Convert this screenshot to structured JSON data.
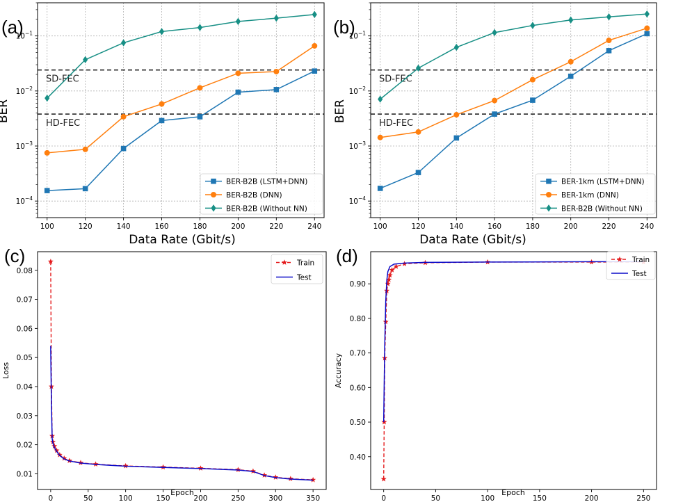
{
  "colors": {
    "lstm": "#1f77b4",
    "dnn": "#ff7f0e",
    "nonn": "#178f85",
    "train": "#e41a1c",
    "test": "#0a0ac8",
    "grid": "#b0b0b0"
  },
  "chart_data": [
    {
      "type": "line",
      "panel_label": "(a)",
      "xlabel": "Data Rate (Gbit/s)",
      "ylabel": "BER",
      "yscale": "log",
      "xlim": [
        95,
        245
      ],
      "ylim": [
        5e-05,
        0.4
      ],
      "xticks": [
        "100",
        "120",
        "140",
        "160",
        "180",
        "200",
        "220",
        "240"
      ],
      "yticks": [
        {
          "v": 0.0001,
          "b": "10",
          "e": "−4"
        },
        {
          "v": 0.001,
          "b": "10",
          "e": "−3"
        },
        {
          "v": 0.01,
          "b": "10",
          "e": "−2"
        },
        {
          "v": 0.1,
          "b": "10",
          "e": "−1"
        }
      ],
      "grid": true,
      "legend": "lower-right",
      "thresholds": [
        {
          "label": "SD-FEC",
          "value": 0.024
        },
        {
          "label": "HD-FEC",
          "value": 0.0038
        }
      ],
      "x": [
        100,
        120,
        140,
        160,
        180,
        200,
        220,
        240
      ],
      "series": [
        {
          "name": "BER-B2B (LSTM+DNN)",
          "color_key": "lstm",
          "marker": "square",
          "values": [
            0.000155,
            0.000168,
            0.0009,
            0.0029,
            0.0034,
            0.0095,
            0.0106,
            0.023
          ]
        },
        {
          "name": "BER-B2B (DNN)",
          "color_key": "dnn",
          "marker": "circle",
          "values": [
            0.00075,
            0.00087,
            0.0034,
            0.0058,
            0.0114,
            0.021,
            0.0225,
            0.066
          ]
        },
        {
          "name": "BER-B2B (Without NN)",
          "color_key": "nonn",
          "marker": "diamond",
          "values": [
            0.0074,
            0.037,
            0.075,
            0.12,
            0.142,
            0.183,
            0.21,
            0.245
          ]
        }
      ]
    },
    {
      "type": "line",
      "panel_label": "(b)",
      "xlabel": "Data Rate (Gbit/s)",
      "ylabel": "BER",
      "yscale": "log",
      "xlim": [
        95,
        245
      ],
      "ylim": [
        5e-05,
        0.4
      ],
      "xticks": [
        "100",
        "120",
        "140",
        "160",
        "180",
        "200",
        "220",
        "240"
      ],
      "yticks": [
        {
          "v": 0.0001,
          "b": "10",
          "e": "−4"
        },
        {
          "v": 0.001,
          "b": "10",
          "e": "−3"
        },
        {
          "v": 0.01,
          "b": "10",
          "e": "−2"
        },
        {
          "v": 0.1,
          "b": "10",
          "e": "−1"
        }
      ],
      "grid": true,
      "legend": "lower-right",
      "thresholds": [
        {
          "label": "SD-FEC",
          "value": 0.024
        },
        {
          "label": "HD-FEC",
          "value": 0.0038
        }
      ],
      "x": [
        100,
        120,
        140,
        160,
        180,
        200,
        220,
        240
      ],
      "series": [
        {
          "name": "BER-1km (LSTM+DNN)",
          "color_key": "lstm",
          "marker": "square",
          "values": [
            0.00017,
            0.00033,
            0.0014,
            0.0038,
            0.0068,
            0.0185,
            0.054,
            0.11
          ]
        },
        {
          "name": "BER-1km (DNN)",
          "color_key": "dnn",
          "marker": "circle",
          "values": [
            0.00143,
            0.0018,
            0.0037,
            0.0067,
            0.016,
            0.034,
            0.083,
            0.138
          ]
        },
        {
          "name": "BER-B2B (Without NN)",
          "color_key": "nonn",
          "marker": "diamond",
          "values": [
            0.0071,
            0.026,
            0.062,
            0.115,
            0.155,
            0.195,
            0.222,
            0.25
          ]
        }
      ]
    },
    {
      "type": "line",
      "panel_label": "(c)",
      "xlabel": "Epoch",
      "ylabel": "Loss",
      "xlim": [
        -17.5,
        367.5
      ],
      "ylim": [
        0.0046,
        0.0864
      ],
      "xticks": [
        0,
        50,
        100,
        150,
        200,
        250,
        300,
        350
      ],
      "yticks": [
        0.01,
        0.02,
        0.03,
        0.04,
        0.05,
        0.06,
        0.07,
        0.08
      ],
      "grid": false,
      "legend": "upper-right",
      "series": [
        {
          "name": "Train",
          "color_key": "train",
          "style": "dashed",
          "marker": "star",
          "points": [
            [
              0,
              0.083
            ],
            [
              1,
              0.04
            ],
            [
              2,
              0.023
            ],
            [
              3,
              0.021
            ],
            [
              5,
              0.0195
            ],
            [
              8,
              0.018
            ],
            [
              12,
              0.0165
            ],
            [
              18,
              0.0153
            ],
            [
              25,
              0.0145
            ],
            [
              40,
              0.0138
            ],
            [
              60,
              0.0133
            ],
            [
              100,
              0.0127
            ],
            [
              150,
              0.0123
            ],
            [
              200,
              0.0119
            ],
            [
              250,
              0.0114
            ],
            [
              270,
              0.0109
            ],
            [
              285,
              0.0095
            ],
            [
              300,
              0.0088
            ],
            [
              320,
              0.0083
            ],
            [
              350,
              0.0079
            ]
          ]
        },
        {
          "name": "Test",
          "color_key": "test",
          "style": "solid",
          "points": [
            [
              0,
              0.054
            ],
            [
              1,
              0.034
            ],
            [
              2,
              0.022
            ],
            [
              3,
              0.0205
            ],
            [
              5,
              0.019
            ],
            [
              8,
              0.0177
            ],
            [
              12,
              0.0163
            ],
            [
              18,
              0.0151
            ],
            [
              25,
              0.0144
            ],
            [
              40,
              0.0137
            ],
            [
              60,
              0.0132
            ],
            [
              100,
              0.0126
            ],
            [
              150,
              0.0122
            ],
            [
              200,
              0.0118
            ],
            [
              250,
              0.0113
            ],
            [
              270,
              0.0108
            ],
            [
              285,
              0.0094
            ],
            [
              300,
              0.0087
            ],
            [
              320,
              0.0082
            ],
            [
              350,
              0.0078
            ]
          ]
        }
      ]
    },
    {
      "type": "line",
      "panel_label": "(d)",
      "xlabel": "Epoch",
      "ylabel": "Accuracy",
      "xlim": [
        -12.5,
        262.5
      ],
      "ylim": [
        0.305,
        0.993
      ],
      "xticks": [
        0,
        50,
        100,
        150,
        200,
        250
      ],
      "yticks": [
        0.4,
        0.5,
        0.6,
        0.7,
        0.8,
        0.9
      ],
      "grid": false,
      "legend": "upper-right",
      "series": [
        {
          "name": "Train",
          "color_key": "train",
          "style": "dashed",
          "marker": "star",
          "points": [
            [
              0,
              0.335
            ],
            [
              0.5,
              0.5
            ],
            [
              1,
              0.685
            ],
            [
              2,
              0.79
            ],
            [
              3,
              0.88
            ],
            [
              4,
              0.9
            ],
            [
              5,
              0.912
            ],
            [
              6,
              0.925
            ],
            [
              8,
              0.94
            ],
            [
              12,
              0.95
            ],
            [
              20,
              0.958
            ],
            [
              40,
              0.961
            ],
            [
              100,
              0.963
            ],
            [
              200,
              0.963
            ],
            [
              250,
              0.963
            ]
          ]
        },
        {
          "name": "Test",
          "color_key": "test",
          "style": "solid",
          "points": [
            [
              0,
              0.5
            ],
            [
              1,
              0.72
            ],
            [
              2,
              0.85
            ],
            [
              3,
              0.91
            ],
            [
              4,
              0.935
            ],
            [
              6,
              0.95
            ],
            [
              10,
              0.957
            ],
            [
              20,
              0.96
            ],
            [
              40,
              0.962
            ],
            [
              100,
              0.963
            ],
            [
              200,
              0.964
            ],
            [
              250,
              0.964
            ]
          ]
        }
      ]
    }
  ]
}
